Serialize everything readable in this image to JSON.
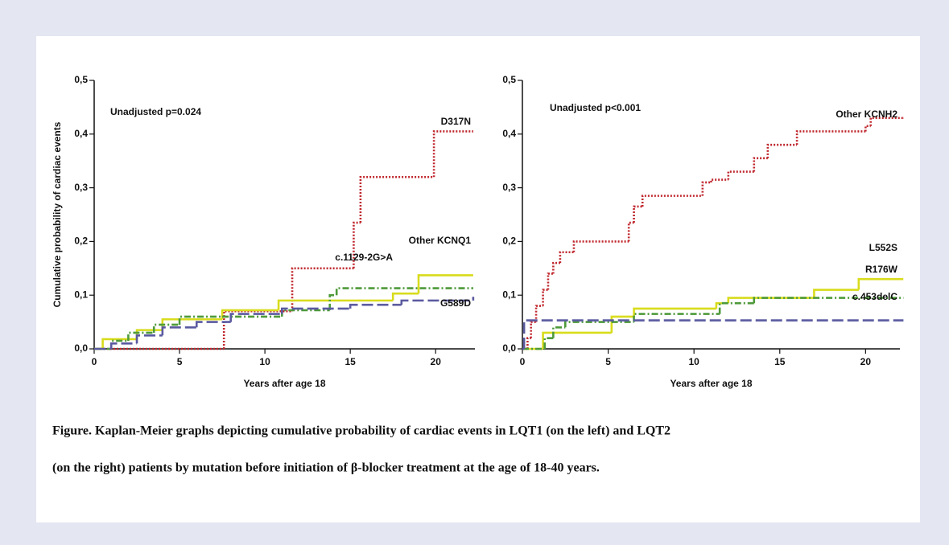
{
  "chart_data": [
    {
      "type": "step",
      "ylabel": "Cumulative probability of cardiac events",
      "xlabel": "Years after age 18",
      "annotation": "Unadjusted p=0.024",
      "xlim": [
        0,
        22.3
      ],
      "ylim": [
        0,
        0.5
      ],
      "xticks": [
        0,
        5,
        10,
        15,
        20
      ],
      "yticks": [
        {
          "value": 0,
          "label": "0,0"
        },
        {
          "value": 0.1,
          "label": "0,1"
        },
        {
          "value": 0.2,
          "label": "0,2"
        },
        {
          "value": 0.3,
          "label": "0,3"
        },
        {
          "value": 0.4,
          "label": "0,4"
        },
        {
          "value": 0.5,
          "label": "0,5"
        }
      ],
      "series": [
        {
          "name": "D317N",
          "color": "#c0272d",
          "x": [
            0,
            7.6,
            11.6,
            15.2,
            15.6,
            19.9,
            22.2
          ],
          "values": [
            0,
            0.07,
            0.15,
            0.235,
            0.32,
            0.405,
            0.405
          ]
        },
        {
          "name": "Other KCNQ1",
          "color": "#d8dc1c",
          "x": [
            0,
            0.5,
            2.5,
            4,
            7.5,
            10.8,
            17.5,
            19,
            22.2
          ],
          "values": [
            0,
            0.018,
            0.035,
            0.055,
            0.072,
            0.09,
            0.103,
            0.137,
            0.137
          ]
        },
        {
          "name": "c.1129-2G>A",
          "color": "#4e9a3a",
          "x": [
            0,
            1,
            2,
            3.5,
            5,
            7.5,
            11,
            13.8,
            14.2,
            22.2
          ],
          "values": [
            0,
            0.015,
            0.03,
            0.045,
            0.06,
            0.06,
            0.072,
            0.1,
            0.113,
            0.113
          ]
        },
        {
          "name": "G589D",
          "color": "#5a5aa0",
          "x": [
            0,
            1,
            2.5,
            4,
            6,
            8,
            11,
            15,
            18,
            22.2
          ],
          "values": [
            0,
            0.01,
            0.025,
            0.04,
            0.05,
            0.065,
            0.075,
            0.082,
            0.09,
            0.097
          ]
        }
      ]
    },
    {
      "type": "step",
      "xlabel": "Years after age 18",
      "annotation": "Unadjusted p<0.001",
      "xlim": [
        0,
        22
      ],
      "ylim": [
        0,
        0.5
      ],
      "xticks": [
        0,
        5,
        10,
        15,
        20
      ],
      "yticks": [
        {
          "value": 0,
          "label": "0,0"
        },
        {
          "value": 0.1,
          "label": "0,1"
        },
        {
          "value": 0.2,
          "label": "0,2"
        },
        {
          "value": 0.3,
          "label": "0,3"
        },
        {
          "value": 0.4,
          "label": "0,4"
        },
        {
          "value": 0.5,
          "label": "0,5"
        }
      ],
      "series": [
        {
          "name": "Other KCNH2",
          "color": "#c0272d",
          "x": [
            0,
            0.3,
            0.5,
            0.8,
            1.2,
            1.5,
            1.8,
            2.2,
            3,
            6.2,
            6.5,
            7,
            10.5,
            11,
            12,
            13.5,
            14.3,
            16,
            20,
            20.3,
            22.2
          ],
          "values": [
            0,
            0.02,
            0.05,
            0.08,
            0.11,
            0.14,
            0.16,
            0.18,
            0.2,
            0.235,
            0.265,
            0.285,
            0.31,
            0.315,
            0.33,
            0.355,
            0.38,
            0.405,
            0.415,
            0.43,
            0.43
          ]
        },
        {
          "name": "L552S",
          "color": "#d8dc1c",
          "x": [
            0,
            1.2,
            5.2,
            6.5,
            11.3,
            12,
            17,
            19.6,
            22.2
          ],
          "values": [
            0,
            0.03,
            0.06,
            0.075,
            0.085,
            0.095,
            0.11,
            0.13,
            0.13
          ]
        },
        {
          "name": "R176W",
          "color": "#4e9a3a",
          "x": [
            0,
            1.3,
            1.8,
            2.5,
            6.5,
            11.5,
            13.5,
            22.2
          ],
          "values": [
            0,
            0.02,
            0.04,
            0.05,
            0.065,
            0.085,
            0.095,
            0.095
          ]
        },
        {
          "name": "c.453delC",
          "color": "#5a5aa0",
          "x": [
            0,
            0.1,
            22.2
          ],
          "values": [
            0,
            0.053,
            0.053
          ]
        }
      ]
    }
  ],
  "caption": [
    "Figure. Kaplan-Meier graphs depicting cumulative probability of cardiac events in LQT1 (on the left) and LQT2",
    "(on the right) patients by mutation before initiation of β-blocker treatment at the age of 18-40 years."
  ]
}
